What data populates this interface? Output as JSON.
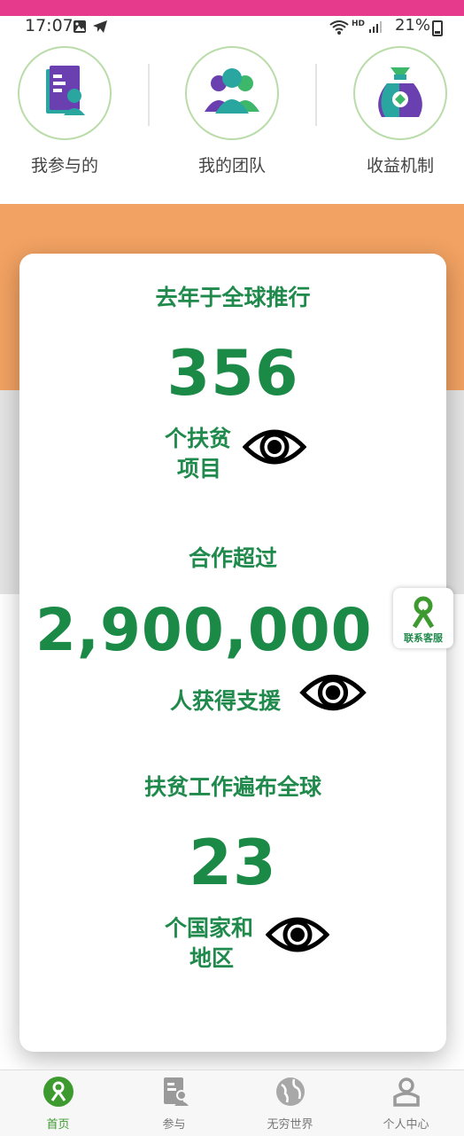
{
  "status_bar": {
    "time": "17:07",
    "network": "HD",
    "battery": "21%"
  },
  "quick_menu": [
    {
      "label": "我参与的",
      "icon": "participation-icon"
    },
    {
      "label": "我的团队",
      "icon": "team-icon"
    },
    {
      "label": "收益机制",
      "icon": "money-bag-icon"
    }
  ],
  "stats": [
    {
      "heading": "去年于全球推行",
      "value": "356",
      "desc_line1": "个扶贫",
      "desc_line2": "项目"
    },
    {
      "heading": "合作超过",
      "value": "2,900,000",
      "desc_line1": "人获得支援",
      "desc_line2": ""
    },
    {
      "heading": "扶贫工作遍布全球",
      "value": "23",
      "desc_line1": "个国家和",
      "desc_line2": "地区"
    }
  ],
  "customer_service": {
    "label": "联系客服"
  },
  "tabs": [
    {
      "label": "首页",
      "active": true
    },
    {
      "label": "参与",
      "active": false
    },
    {
      "label": "无穷世界",
      "active": false
    },
    {
      "label": "个人中心",
      "active": false
    }
  ],
  "colors": {
    "accent_green": "#1f8a4c",
    "orange": "#f2a262",
    "top_bar": "#e63a8c"
  }
}
